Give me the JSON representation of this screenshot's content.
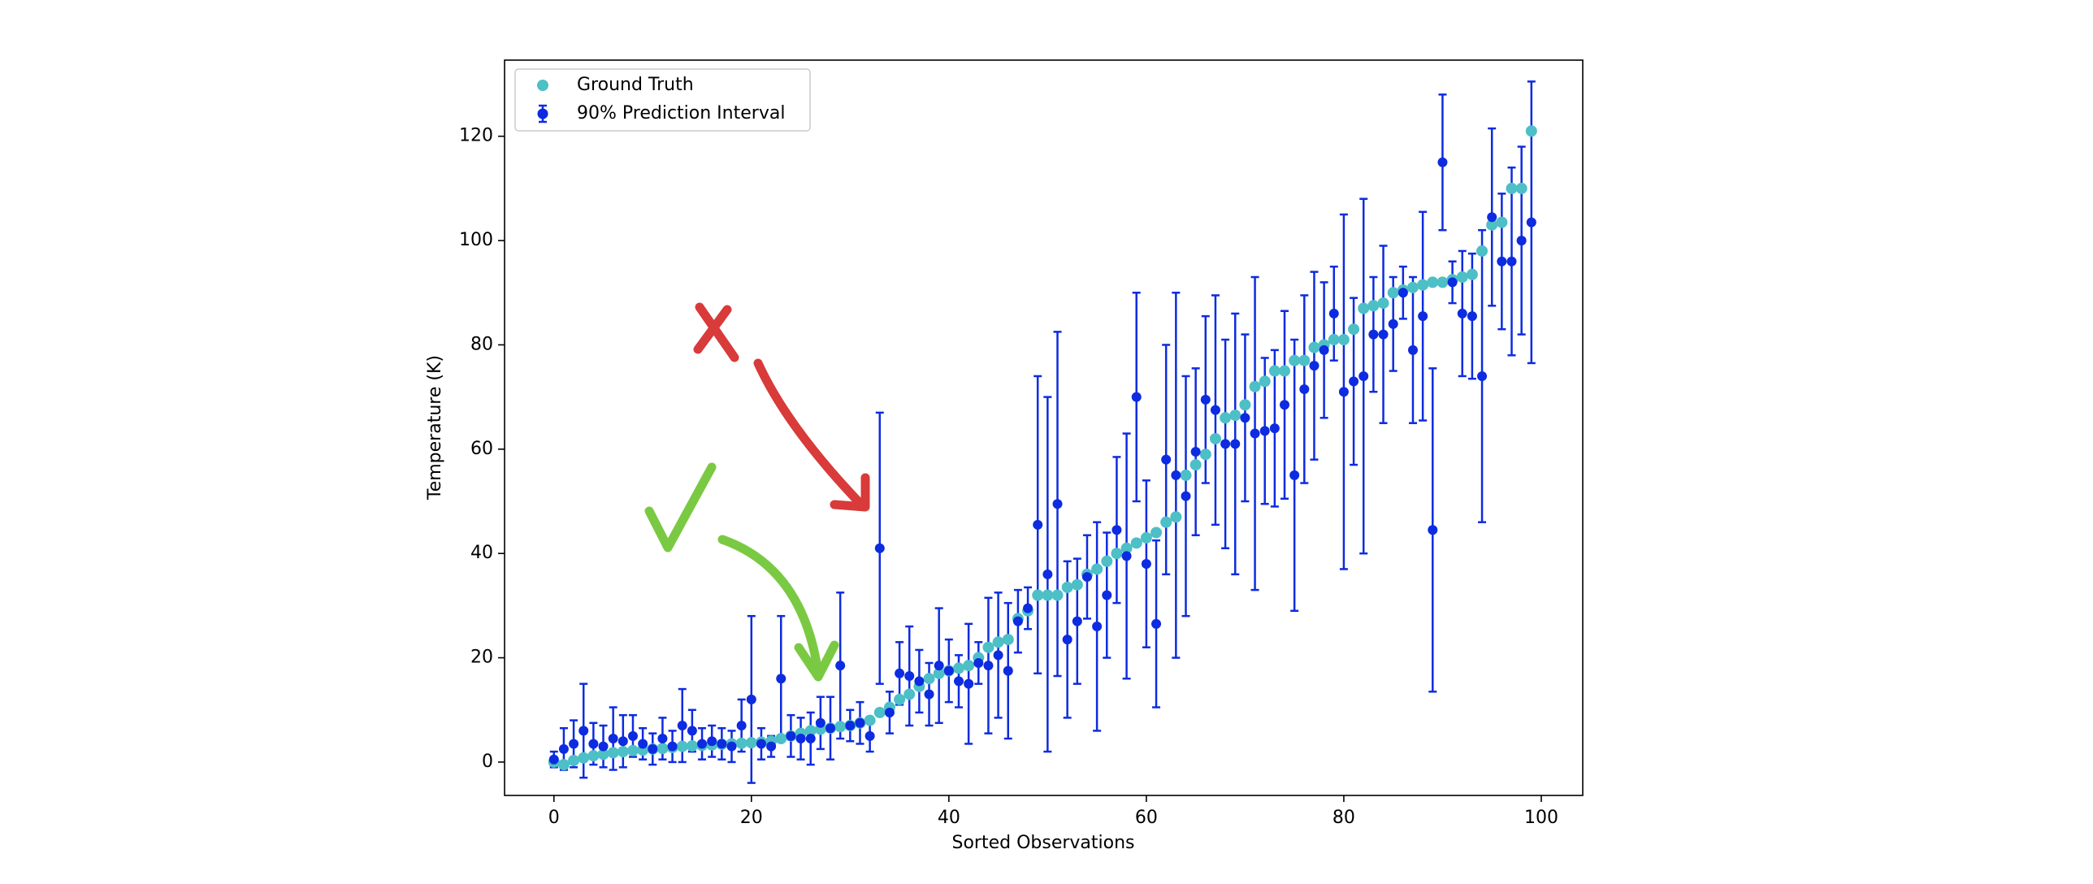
{
  "chart_data": {
    "type": "errorbar",
    "xlabel": "Sorted Observations",
    "ylabel": "Temperature (K)",
    "x": [
      0,
      1,
      2,
      3,
      4,
      5,
      6,
      7,
      8,
      9,
      10,
      11,
      12,
      13,
      14,
      15,
      16,
      17,
      18,
      19,
      20,
      21,
      22,
      23,
      24,
      25,
      26,
      27,
      28,
      29,
      30,
      31,
      32,
      33,
      34,
      35,
      36,
      37,
      38,
      39,
      40,
      41,
      42,
      43,
      44,
      45,
      46,
      47,
      48,
      49,
      50,
      51,
      52,
      53,
      54,
      55,
      56,
      57,
      58,
      59,
      60,
      61,
      62,
      63,
      64,
      65,
      66,
      67,
      68,
      69,
      70,
      71,
      72,
      73,
      74,
      75,
      76,
      77,
      78,
      79,
      80,
      81,
      82,
      83,
      84,
      85,
      86,
      87,
      88,
      89,
      90,
      91,
      92,
      93,
      94,
      95,
      96,
      97,
      98,
      99
    ],
    "xlim": [
      -5,
      104.2
    ],
    "ylim": [
      -6.4,
      134.6
    ],
    "xticks": [
      0,
      20,
      40,
      60,
      80,
      100
    ],
    "yticks": [
      0,
      20,
      40,
      60,
      80,
      100,
      120
    ],
    "legend": "upper left",
    "series": [
      {
        "name": "Ground Truth",
        "color": "#4dbfc6",
        "values": [
          0,
          -0.5,
          0.3,
          0.8,
          1.2,
          1.5,
          1.8,
          2,
          2.2,
          2.3,
          2.5,
          2.6,
          2.8,
          3,
          3.1,
          3.2,
          3.3,
          3.4,
          3.5,
          3.6,
          3.7,
          3.8,
          4,
          4.5,
          5,
          5.5,
          6,
          6.3,
          6.5,
          6.8,
          7,
          7.5,
          8,
          9.5,
          10.5,
          12,
          13,
          14.5,
          16,
          17,
          17.5,
          18,
          18.5,
          20,
          22,
          23,
          23.5,
          27.5,
          29,
          32,
          32,
          32,
          33.5,
          34,
          36,
          37,
          38.5,
          40,
          41,
          42,
          43,
          44,
          46,
          47,
          55,
          57,
          59,
          62,
          66,
          66.5,
          68.5,
          72,
          73,
          75,
          75,
          77,
          77,
          79.5,
          80,
          81,
          81,
          83,
          87,
          87.5,
          88,
          90,
          90.5,
          91,
          91.5,
          92,
          92,
          92.5,
          93,
          93.5,
          98,
          103,
          103.5,
          110,
          110,
          121
        ]
      },
      {
        "name": "90% Prediction Interval",
        "color": "#0d2be0",
        "values": [
          0.5,
          2.5,
          3.5,
          6,
          3.5,
          3,
          4.5,
          4,
          5,
          3.5,
          2.5,
          4.5,
          3,
          7,
          6,
          3.5,
          4,
          3.5,
          3,
          7,
          12,
          3.5,
          3,
          16,
          5,
          4.5,
          4.5,
          7.5,
          6.5,
          18.5,
          7,
          7.5,
          5,
          41,
          9.5,
          17,
          16.5,
          15.5,
          13,
          18.5,
          17.5,
          15.5,
          15,
          19,
          18.5,
          20.5,
          17.5,
          27,
          29.5,
          45.5,
          36,
          49.5,
          23.5,
          27,
          35.5,
          26,
          32,
          44.5,
          39.5,
          70,
          38,
          26.5,
          58,
          55,
          51,
          59.5,
          69.5,
          67.5,
          61,
          61,
          66,
          63,
          63.5,
          64,
          68.5,
          55,
          71.5,
          76,
          79,
          86,
          71,
          73,
          74,
          82,
          82,
          84,
          90,
          79,
          85.5,
          44.5,
          115,
          92,
          86,
          85.5,
          74,
          104.5,
          96,
          96,
          100,
          103.5
        ],
        "errors": [
          1.5,
          4,
          4.5,
          9,
          4,
          4,
          6,
          5,
          4,
          3,
          3,
          4,
          3,
          7,
          4,
          3,
          3,
          3,
          3,
          5,
          16,
          3,
          2,
          12,
          4,
          4,
          5,
          5,
          6,
          14,
          3,
          4,
          3,
          26,
          4,
          6,
          9.5,
          6,
          6,
          11,
          6,
          5,
          11.5,
          4,
          13,
          12,
          13,
          6,
          4,
          28.5,
          34,
          33,
          15,
          12,
          8,
          20,
          12,
          14,
          23.5,
          20,
          16,
          16,
          22,
          35,
          23,
          16,
          16,
          22,
          20,
          25,
          16,
          30,
          14,
          15,
          18,
          26,
          18,
          18,
          13,
          9,
          34,
          16,
          34,
          11,
          17,
          9,
          5,
          14,
          20,
          31,
          13,
          4,
          12,
          12,
          28,
          17,
          13,
          18,
          18,
          27
        ]
      }
    ]
  }
}
